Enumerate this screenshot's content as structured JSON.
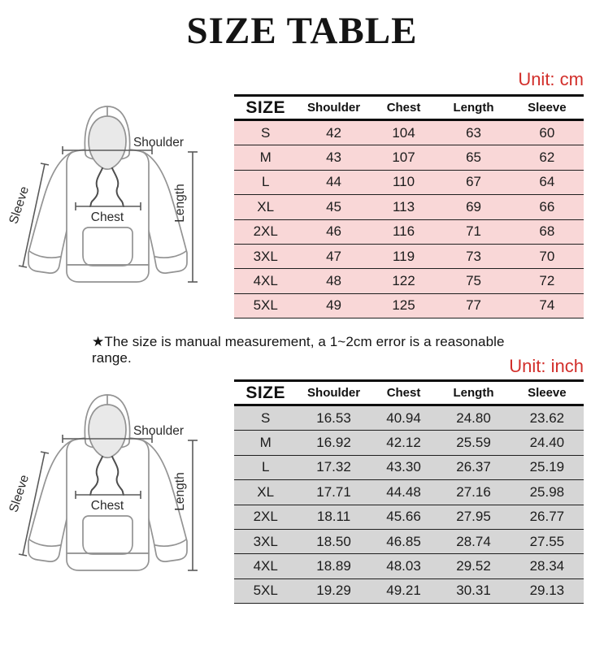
{
  "page": {
    "title": "SIZE TABLE",
    "note": "★The size is manual measurement, a 1~2cm error is a reasonable range."
  },
  "diagram": {
    "labels": {
      "shoulder": "Shoulder",
      "sleeve": "Sleeve",
      "chest": "Chest",
      "length": "Length"
    }
  },
  "tables": [
    {
      "unit_label": "Unit: cm",
      "row_color": "#f9d7d7",
      "headers": [
        "SIZE",
        "Shoulder",
        "Chest",
        "Length",
        "Sleeve"
      ],
      "rows": [
        [
          "S",
          "42",
          "104",
          "63",
          "60"
        ],
        [
          "M",
          "43",
          "107",
          "65",
          "62"
        ],
        [
          "L",
          "44",
          "110",
          "67",
          "64"
        ],
        [
          "XL",
          "45",
          "113",
          "69",
          "66"
        ],
        [
          "2XL",
          "46",
          "116",
          "71",
          "68"
        ],
        [
          "3XL",
          "47",
          "119",
          "73",
          "70"
        ],
        [
          "4XL",
          "48",
          "122",
          "75",
          "72"
        ],
        [
          "5XL",
          "49",
          "125",
          "77",
          "74"
        ]
      ]
    },
    {
      "unit_label": "Unit: inch",
      "row_color": "#d6d6d6",
      "headers": [
        "SIZE",
        "Shoulder",
        "Chest",
        "Length",
        "Sleeve"
      ],
      "rows": [
        [
          "S",
          "16.53",
          "40.94",
          "24.80",
          "23.62"
        ],
        [
          "M",
          "16.92",
          "42.12",
          "25.59",
          "24.40"
        ],
        [
          "L",
          "17.32",
          "43.30",
          "26.37",
          "25.19"
        ],
        [
          "XL",
          "17.71",
          "44.48",
          "27.16",
          "25.98"
        ],
        [
          "2XL",
          "18.11",
          "45.66",
          "27.95",
          "26.77"
        ],
        [
          "3XL",
          "18.50",
          "46.85",
          "28.74",
          "27.55"
        ],
        [
          "4XL",
          "18.89",
          "48.03",
          "29.52",
          "28.34"
        ],
        [
          "5XL",
          "19.29",
          "49.21",
          "30.31",
          "29.13"
        ]
      ]
    }
  ],
  "colors": {
    "accent_red": "#d22f2b",
    "cm_row_pink": "#f9d7d7",
    "inch_row_gray": "#d6d6d6",
    "table_border": "#0d0d0d"
  }
}
